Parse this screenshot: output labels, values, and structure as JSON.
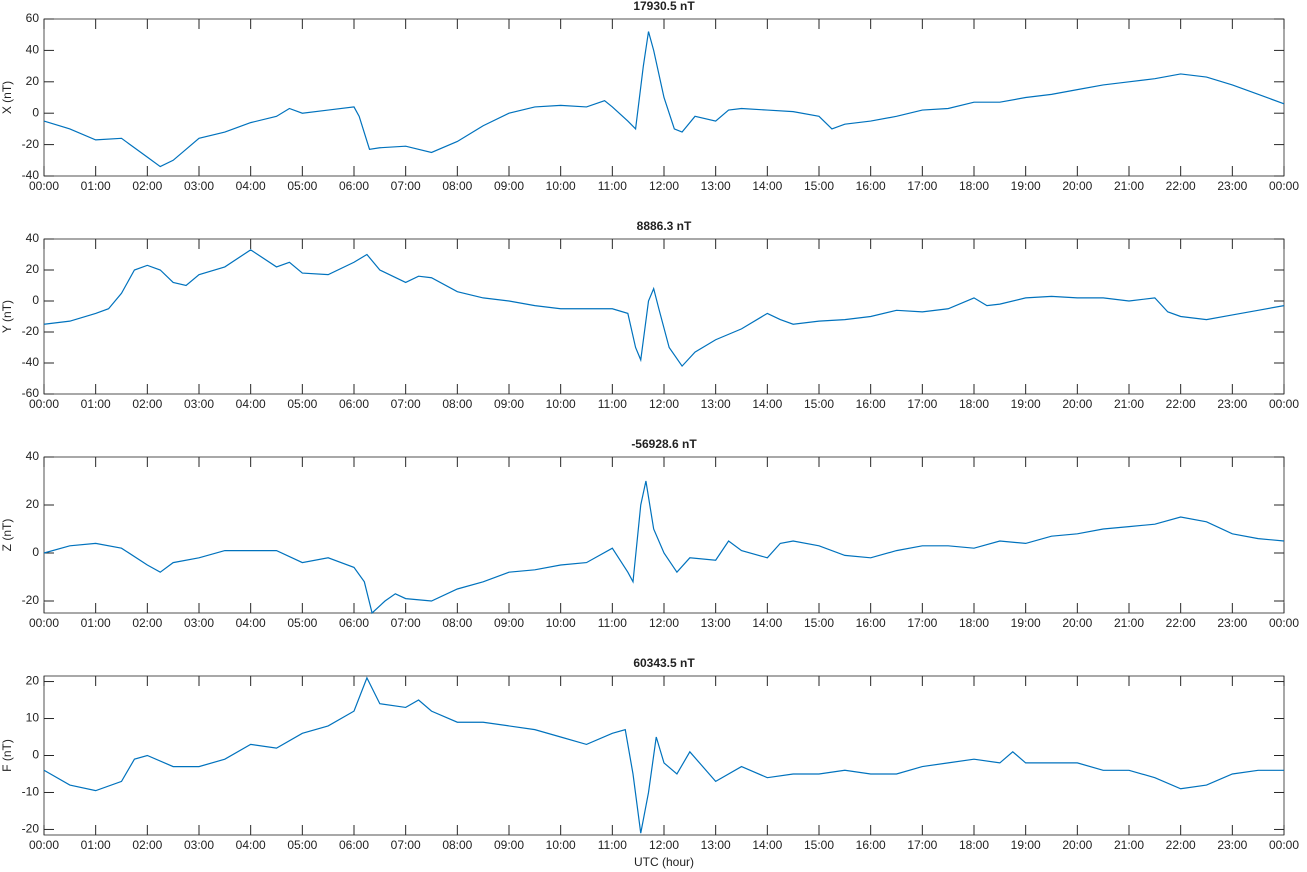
{
  "chart_data": [
    {
      "type": "line",
      "title": "17930.5 nT",
      "ylabel": "X (nT)",
      "color": "#0072bd",
      "x": [
        0,
        0.5,
        1,
        1.5,
        1.75,
        2,
        2.25,
        2.5,
        3,
        3.5,
        4,
        4.5,
        4.75,
        5,
        5.5,
        6,
        6.1,
        6.3,
        6.5,
        7,
        7.5,
        8,
        8.5,
        9,
        9.5,
        10,
        10.5,
        10.85,
        11,
        11.3,
        11.45,
        11.6,
        11.7,
        11.8,
        12,
        12.2,
        12.35,
        12.6,
        13,
        13.25,
        13.5,
        14,
        14.5,
        15,
        15.25,
        15.5,
        16,
        16.5,
        17,
        17.5,
        18,
        18.5,
        19,
        19.5,
        20,
        20.5,
        21,
        21.5,
        22,
        22.5,
        23,
        23.5,
        24
      ],
      "values": [
        -5,
        -10,
        -17,
        -16,
        -22,
        -28,
        -34,
        -30,
        -16,
        -12,
        -6,
        -2,
        3,
        0,
        2,
        4,
        -2,
        -23,
        -22,
        -21,
        -25,
        -18,
        -8,
        0,
        4,
        5,
        4,
        8,
        4,
        -5,
        -10,
        30,
        52,
        40,
        10,
        -10,
        -12,
        -2,
        -5,
        2,
        3,
        2,
        1,
        -2,
        -10,
        -7,
        -5,
        -2,
        2,
        3,
        7,
        7,
        10,
        12,
        15,
        18,
        20,
        22,
        25,
        23,
        18,
        12,
        6
      ],
      "xlim": [
        0,
        24
      ],
      "ylim": [
        -40,
        60
      ],
      "yticks": [
        -40,
        -20,
        0,
        20,
        40,
        60
      ],
      "xticks": [
        {
          "value": 0,
          "label": "00:00"
        },
        {
          "value": 1,
          "label": "01:00"
        },
        {
          "value": 2,
          "label": "02:00"
        },
        {
          "value": 3,
          "label": "03:00"
        },
        {
          "value": 4,
          "label": "04:00"
        },
        {
          "value": 5,
          "label": "05:00"
        },
        {
          "value": 6,
          "label": "06:00"
        },
        {
          "value": 7,
          "label": "07:00"
        },
        {
          "value": 8,
          "label": "08:00"
        },
        {
          "value": 9,
          "label": "09:00"
        },
        {
          "value": 10,
          "label": "10:00"
        },
        {
          "value": 11,
          "label": "11:00"
        },
        {
          "value": 12,
          "label": "12:00"
        },
        {
          "value": 13,
          "label": "13:00"
        },
        {
          "value": 14,
          "label": "14:00"
        },
        {
          "value": 15,
          "label": "15:00"
        },
        {
          "value": 16,
          "label": "16:00"
        },
        {
          "value": 17,
          "label": "17:00"
        },
        {
          "value": 18,
          "label": "18:00"
        },
        {
          "value": 19,
          "label": "19:00"
        },
        {
          "value": 20,
          "label": "20:00"
        },
        {
          "value": 21,
          "label": "21:00"
        },
        {
          "value": 22,
          "label": "22:00"
        },
        {
          "value": 23,
          "label": "23:00"
        },
        {
          "value": 24,
          "label": "00:00"
        }
      ]
    },
    {
      "type": "line",
      "title": "8886.3 nT",
      "ylabel": "Y (nT)",
      "color": "#0072bd",
      "x": [
        0,
        0.5,
        1,
        1.25,
        1.5,
        1.75,
        2,
        2.25,
        2.5,
        2.75,
        3,
        3.5,
        4,
        4.5,
        4.75,
        5,
        5.5,
        6,
        6.25,
        6.5,
        7,
        7.25,
        7.5,
        8,
        8.5,
        9,
        9.5,
        10,
        10.5,
        11,
        11.3,
        11.45,
        11.55,
        11.7,
        11.8,
        11.9,
        12.1,
        12.35,
        12.6,
        13,
        13.5,
        14,
        14.25,
        14.5,
        15,
        15.5,
        16,
        16.5,
        17,
        17.5,
        18,
        18.25,
        18.5,
        19,
        19.5,
        20,
        20.5,
        21,
        21.5,
        21.75,
        22,
        22.5,
        23,
        23.5,
        24
      ],
      "values": [
        -15,
        -13,
        -8,
        -5,
        5,
        20,
        23,
        20,
        12,
        10,
        17,
        22,
        33,
        22,
        25,
        18,
        17,
        25,
        30,
        20,
        12,
        16,
        15,
        6,
        2,
        0,
        -3,
        -5,
        -5,
        -5,
        -8,
        -30,
        -38,
        0,
        8,
        -5,
        -30,
        -42,
        -33,
        -25,
        -18,
        -8,
        -12,
        -15,
        -13,
        -12,
        -10,
        -6,
        -7,
        -5,
        2,
        -3,
        -2,
        2,
        3,
        2,
        2,
        0,
        2,
        -7,
        -10,
        -12,
        -9,
        -6,
        -3
      ],
      "xlim": [
        0,
        24
      ],
      "ylim": [
        -60,
        40
      ],
      "yticks": [
        -60,
        -40,
        -20,
        0,
        20,
        40
      ],
      "xticks": [
        {
          "value": 0,
          "label": "00:00"
        },
        {
          "value": 1,
          "label": "01:00"
        },
        {
          "value": 2,
          "label": "02:00"
        },
        {
          "value": 3,
          "label": "03:00"
        },
        {
          "value": 4,
          "label": "04:00"
        },
        {
          "value": 5,
          "label": "05:00"
        },
        {
          "value": 6,
          "label": "06:00"
        },
        {
          "value": 7,
          "label": "07:00"
        },
        {
          "value": 8,
          "label": "08:00"
        },
        {
          "value": 9,
          "label": "09:00"
        },
        {
          "value": 10,
          "label": "10:00"
        },
        {
          "value": 11,
          "label": "11:00"
        },
        {
          "value": 12,
          "label": "12:00"
        },
        {
          "value": 13,
          "label": "13:00"
        },
        {
          "value": 14,
          "label": "14:00"
        },
        {
          "value": 15,
          "label": "15:00"
        },
        {
          "value": 16,
          "label": "16:00"
        },
        {
          "value": 17,
          "label": "17:00"
        },
        {
          "value": 18,
          "label": "18:00"
        },
        {
          "value": 19,
          "label": "19:00"
        },
        {
          "value": 20,
          "label": "20:00"
        },
        {
          "value": 21,
          "label": "21:00"
        },
        {
          "value": 22,
          "label": "22:00"
        },
        {
          "value": 23,
          "label": "23:00"
        },
        {
          "value": 24,
          "label": "00:00"
        }
      ]
    },
    {
      "type": "line",
      "title": "-56928.6 nT",
      "ylabel": "Z (nT)",
      "color": "#0072bd",
      "x": [
        0,
        0.5,
        1,
        1.5,
        2,
        2.25,
        2.5,
        3,
        3.5,
        4,
        4.5,
        5,
        5.5,
        6,
        6.2,
        6.35,
        6.6,
        6.8,
        7,
        7.5,
        8,
        8.5,
        9,
        9.5,
        10,
        10.5,
        11,
        11.3,
        11.4,
        11.55,
        11.65,
        11.8,
        12,
        12.25,
        12.5,
        13,
        13.25,
        13.5,
        14,
        14.25,
        14.5,
        15,
        15.5,
        16,
        16.5,
        17,
        17.5,
        18,
        18.5,
        19,
        19.5,
        20,
        20.5,
        21,
        21.5,
        22,
        22.5,
        23,
        23.5,
        24
      ],
      "values": [
        0,
        3,
        4,
        2,
        -5,
        -8,
        -4,
        -2,
        1,
        1,
        1,
        -4,
        -2,
        -6,
        -12,
        -25,
        -20,
        -17,
        -19,
        -20,
        -15,
        -12,
        -8,
        -7,
        -5,
        -4,
        2,
        -8,
        -12,
        20,
        30,
        10,
        0,
        -8,
        -2,
        -3,
        5,
        1,
        -2,
        4,
        5,
        3,
        -1,
        -2,
        1,
        3,
        3,
        2,
        5,
        4,
        7,
        8,
        10,
        11,
        12,
        15,
        13,
        8,
        6,
        5
      ],
      "xlim": [
        0,
        24
      ],
      "ylim": [
        -25,
        40
      ],
      "yticks": [
        -20,
        0,
        20,
        40
      ],
      "xticks": [
        {
          "value": 0,
          "label": "00:00"
        },
        {
          "value": 1,
          "label": "01:00"
        },
        {
          "value": 2,
          "label": "02:00"
        },
        {
          "value": 3,
          "label": "03:00"
        },
        {
          "value": 4,
          "label": "04:00"
        },
        {
          "value": 5,
          "label": "05:00"
        },
        {
          "value": 6,
          "label": "06:00"
        },
        {
          "value": 7,
          "label": "07:00"
        },
        {
          "value": 8,
          "label": "08:00"
        },
        {
          "value": 9,
          "label": "09:00"
        },
        {
          "value": 10,
          "label": "10:00"
        },
        {
          "value": 11,
          "label": "11:00"
        },
        {
          "value": 12,
          "label": "12:00"
        },
        {
          "value": 13,
          "label": "13:00"
        },
        {
          "value": 14,
          "label": "14:00"
        },
        {
          "value": 15,
          "label": "15:00"
        },
        {
          "value": 16,
          "label": "16:00"
        },
        {
          "value": 17,
          "label": "17:00"
        },
        {
          "value": 18,
          "label": "18:00"
        },
        {
          "value": 19,
          "label": "19:00"
        },
        {
          "value": 20,
          "label": "20:00"
        },
        {
          "value": 21,
          "label": "21:00"
        },
        {
          "value": 22,
          "label": "22:00"
        },
        {
          "value": 23,
          "label": "23:00"
        },
        {
          "value": 24,
          "label": "00:00"
        }
      ]
    },
    {
      "type": "line",
      "title": "60343.5 nT",
      "ylabel": "F (nT)",
      "xlabel": "UTC (hour)",
      "color": "#0072bd",
      "x": [
        0,
        0.5,
        1,
        1.5,
        1.75,
        2,
        2.5,
        3,
        3.5,
        4,
        4.5,
        5,
        5.5,
        6,
        6.25,
        6.5,
        7,
        7.25,
        7.5,
        8,
        8.5,
        9,
        9.5,
        10,
        10.5,
        11,
        11.25,
        11.4,
        11.55,
        11.7,
        11.85,
        12,
        12.25,
        12.5,
        13,
        13.5,
        14,
        14.5,
        15,
        15.5,
        16,
        16.5,
        17,
        17.5,
        18,
        18.5,
        18.75,
        19,
        19.5,
        20,
        20.5,
        21,
        21.5,
        22,
        22.5,
        23,
        23.5,
        24
      ],
      "values": [
        -4,
        -8,
        -9.5,
        -7,
        -1,
        0,
        -3,
        -3,
        -1,
        3,
        2,
        6,
        8,
        12,
        21,
        14,
        13,
        15,
        12,
        9,
        9,
        8,
        7,
        5,
        3,
        6,
        7,
        -5,
        -21,
        -10,
        5,
        -2,
        -5,
        1,
        -7,
        -3,
        -6,
        -5,
        -5,
        -4,
        -5,
        -5,
        -3,
        -2,
        -1,
        -2,
        1,
        -2,
        -2,
        -2,
        -4,
        -4,
        -6,
        -9,
        -8,
        -5,
        -4,
        -4
      ],
      "xlim": [
        0,
        24
      ],
      "ylim": [
        -21.5,
        21.5
      ],
      "yticks": [
        -20,
        -10,
        0,
        10,
        20
      ],
      "xticks": [
        {
          "value": 0,
          "label": "00:00"
        },
        {
          "value": 1,
          "label": "01:00"
        },
        {
          "value": 2,
          "label": "02:00"
        },
        {
          "value": 3,
          "label": "03:00"
        },
        {
          "value": 4,
          "label": "04:00"
        },
        {
          "value": 5,
          "label": "05:00"
        },
        {
          "value": 6,
          "label": "06:00"
        },
        {
          "value": 7,
          "label": "07:00"
        },
        {
          "value": 8,
          "label": "08:00"
        },
        {
          "value": 9,
          "label": "09:00"
        },
        {
          "value": 10,
          "label": "10:00"
        },
        {
          "value": 11,
          "label": "11:00"
        },
        {
          "value": 12,
          "label": "12:00"
        },
        {
          "value": 13,
          "label": "13:00"
        },
        {
          "value": 14,
          "label": "14:00"
        },
        {
          "value": 15,
          "label": "15:00"
        },
        {
          "value": 16,
          "label": "16:00"
        },
        {
          "value": 17,
          "label": "17:00"
        },
        {
          "value": 18,
          "label": "18:00"
        },
        {
          "value": 19,
          "label": "19:00"
        },
        {
          "value": 20,
          "label": "20:00"
        },
        {
          "value": 21,
          "label": "21:00"
        },
        {
          "value": 22,
          "label": "22:00"
        },
        {
          "value": 23,
          "label": "23:00"
        },
        {
          "value": 24,
          "label": "00:00"
        }
      ]
    }
  ]
}
